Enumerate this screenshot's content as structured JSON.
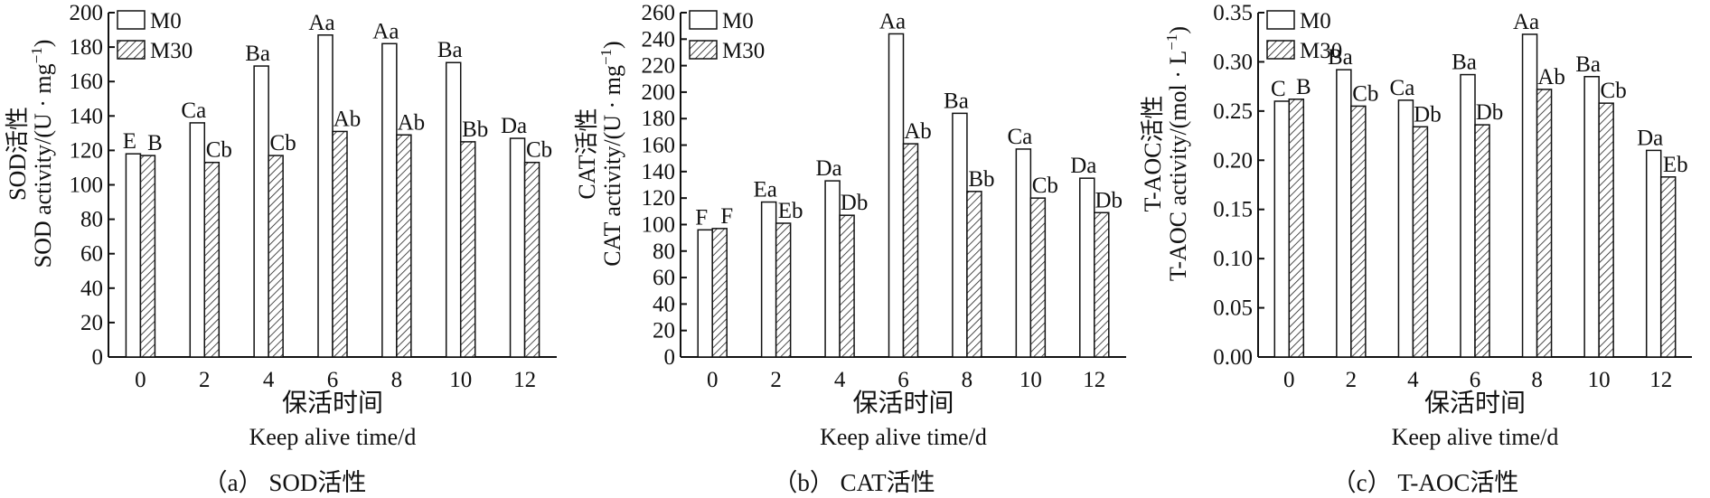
{
  "legend": {
    "series_labels": [
      "M0",
      "M30"
    ]
  },
  "colors": {
    "axis": "#111111",
    "m0_fill": "#ffffff",
    "m30_hatch": "#222222"
  },
  "chart_data": [
    {
      "type": "bar",
      "caption": "（a） SOD活性",
      "categories": [
        "0",
        "2",
        "4",
        "6",
        "8",
        "10",
        "12"
      ],
      "xlabel_cn": "保活时间",
      "xlabel_en": "Keep alive time/d",
      "ylabel_cn": "SOD活性",
      "ylabel_en": "SOD activity/(U · mg",
      "ylabel_sup": "−1",
      "ylabel_tail": ")",
      "ylim": [
        0,
        200
      ],
      "yticks": [
        "0",
        "20",
        "40",
        "60",
        "80",
        "100",
        "120",
        "140",
        "160",
        "180",
        "200"
      ],
      "series": [
        {
          "name": "M0",
          "values": [
            118,
            136,
            169,
            187,
            182,
            171,
            127
          ],
          "labels": [
            "E",
            "Ca",
            "Ba",
            "Aa",
            "Aa",
            "Ba",
            "Da"
          ]
        },
        {
          "name": "M30",
          "values": [
            117,
            113,
            117,
            131,
            129,
            125,
            113
          ],
          "labels": [
            "B",
            "Cb",
            "Cb",
            "Ab",
            "Ab",
            "Bb",
            "Cb"
          ]
        }
      ],
      "legend_position": "top-left",
      "grid": false
    },
    {
      "type": "bar",
      "caption": "（b） CAT活性",
      "categories": [
        "0",
        "2",
        "4",
        "6",
        "8",
        "10",
        "12"
      ],
      "xlabel_cn": "保活时间",
      "xlabel_en": "Keep alive time/d",
      "ylabel_cn": "CAT活性",
      "ylabel_en": "CAT activity/(U · mg",
      "ylabel_sup": "−1",
      "ylabel_tail": ")",
      "ylim": [
        0,
        260
      ],
      "yticks": [
        "0",
        "20",
        "40",
        "60",
        "80",
        "100",
        "120",
        "140",
        "160",
        "180",
        "200",
        "220",
        "240",
        "260"
      ],
      "series": [
        {
          "name": "M0",
          "values": [
            96,
            117,
            133,
            244,
            184,
            157,
            135
          ],
          "labels": [
            "F",
            "Ea",
            "Da",
            "Aa",
            "Ba",
            "Ca",
            "Da"
          ]
        },
        {
          "name": "M30",
          "values": [
            97,
            101,
            107,
            161,
            125,
            120,
            109
          ],
          "labels": [
            "F",
            "Eb",
            "Db",
            "Ab",
            "Bb",
            "Cb",
            "Db"
          ]
        }
      ],
      "legend_position": "top-left",
      "grid": false
    },
    {
      "type": "bar",
      "caption": "（c） T-AOC活性",
      "categories": [
        "0",
        "2",
        "4",
        "6",
        "8",
        "10",
        "12"
      ],
      "xlabel_cn": "保活时间",
      "xlabel_en": "Keep alive time/d",
      "ylabel_cn": "T-AOC活性",
      "ylabel_en": "T-AOC activity/(mol · L",
      "ylabel_sup": "−1",
      "ylabel_tail": ")",
      "ylim": [
        0,
        0.35
      ],
      "yticks": [
        "0.00",
        "0.05",
        "0.10",
        "0.15",
        "0.20",
        "0.25",
        "0.30",
        "0.35"
      ],
      "series": [
        {
          "name": "M0",
          "values": [
            0.26,
            0.292,
            0.261,
            0.287,
            0.328,
            0.285,
            0.21
          ],
          "labels": [
            "C",
            "Ba",
            "Ca",
            "Ba",
            "Aa",
            "Ba",
            "Da"
          ]
        },
        {
          "name": "M30",
          "values": [
            0.262,
            0.255,
            0.234,
            0.236,
            0.272,
            0.258,
            0.183
          ],
          "labels": [
            "B",
            "Cb",
            "Db",
            "Db",
            "Ab",
            "Cb",
            "Eb"
          ]
        }
      ],
      "legend_position": "top-left",
      "grid": false
    }
  ]
}
